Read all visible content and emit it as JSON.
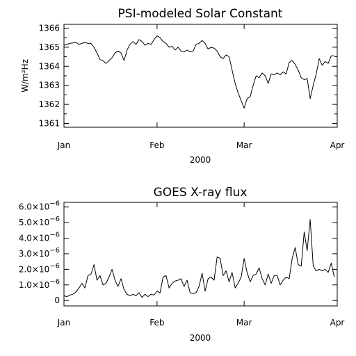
{
  "chart_data": [
    {
      "type": "line",
      "title": "PSI-modeled Solar Constant",
      "ylabel": "W/m²Hz",
      "xlabel": "2000",
      "x_tick_labels": [
        "Jan",
        "Feb",
        "Mar",
        "Apr"
      ],
      "x_tick_days": [
        0,
        31,
        60,
        91
      ],
      "y_tick_labels": [
        "1361",
        "1362",
        "1363",
        "1364",
        "1365",
        "1366"
      ],
      "y_ticks": [
        1361,
        1362,
        1363,
        1364,
        1365,
        1366
      ],
      "xlim": [
        0,
        91
      ],
      "ylim": [
        1360.8,
        1366.2
      ],
      "series": [
        {
          "x": [
            0,
            2,
            4,
            5,
            6,
            7,
            8,
            9,
            10,
            11,
            12,
            13,
            14,
            15,
            16,
            17,
            18,
            19,
            20,
            21,
            22,
            23,
            24,
            25,
            26,
            27,
            28,
            29,
            30,
            31,
            32,
            33,
            34,
            35,
            36,
            37,
            38,
            39,
            40,
            41,
            42,
            43,
            44,
            45,
            46,
            47,
            48,
            49,
            50,
            51,
            52,
            53,
            54,
            55,
            56,
            57,
            58,
            59,
            60,
            61,
            62,
            63,
            64,
            65,
            66,
            67,
            68,
            69,
            70,
            71,
            72,
            73,
            74,
            75,
            76,
            77,
            78,
            79,
            80,
            81,
            82,
            83,
            84,
            85,
            86,
            87,
            88,
            89,
            90
          ],
          "y": [
            1365.1,
            1365.2,
            1365.25,
            1365.15,
            1365.2,
            1365.25,
            1365.2,
            1365.2,
            1365.0,
            1364.7,
            1364.35,
            1364.3,
            1364.15,
            1364.3,
            1364.45,
            1364.7,
            1364.8,
            1364.7,
            1364.3,
            1364.85,
            1365.15,
            1365.3,
            1365.15,
            1365.4,
            1365.3,
            1365.1,
            1365.2,
            1365.15,
            1365.4,
            1365.6,
            1365.5,
            1365.3,
            1365.2,
            1365.0,
            1365.05,
            1364.85,
            1365.0,
            1364.8,
            1364.75,
            1364.85,
            1364.75,
            1364.8,
            1365.15,
            1365.2,
            1365.35,
            1365.2,
            1364.9,
            1365.0,
            1364.95,
            1364.8,
            1364.5,
            1364.4,
            1364.6,
            1364.5,
            1363.8,
            1363.1,
            1362.6,
            1362.2,
            1361.8,
            1362.3,
            1362.4,
            1363.0,
            1363.5,
            1363.4,
            1363.65,
            1363.5,
            1363.1,
            1363.6,
            1363.55,
            1363.65,
            1363.55,
            1363.7,
            1363.6,
            1364.2,
            1364.3,
            1364.1,
            1363.8,
            1363.4,
            1363.3,
            1363.35,
            1362.3,
            1363.0,
            1363.6,
            1364.4,
            1364.05,
            1364.25,
            1364.15,
            1364.55,
            1364.55
          ]
        }
      ]
    },
    {
      "type": "line",
      "title": "GOES X-ray flux",
      "ylabel": "",
      "xlabel": "2000",
      "x_tick_labels": [
        "Jan",
        "Feb",
        "Mar",
        "Apr"
      ],
      "x_tick_days": [
        0,
        31,
        60,
        91
      ],
      "y_tick_labels": [
        {
          "mant": "0",
          "exp": ""
        },
        {
          "mant": "1.0×10",
          "exp": "−6"
        },
        {
          "mant": "2.0×10",
          "exp": "−6"
        },
        {
          "mant": "3.0×10",
          "exp": "−6"
        },
        {
          "mant": "4.0×10",
          "exp": "−6"
        },
        {
          "mant": "5.0×10",
          "exp": "−6"
        },
        {
          "mant": "6.0×10",
          "exp": "−6"
        }
      ],
      "y_ticks": [
        0,
        1e-06,
        2e-06,
        3e-06,
        4e-06,
        5e-06,
        6e-06
      ],
      "xlim": [
        0,
        91
      ],
      "ylim": [
        -3.5e-07,
        6.3e-06
      ],
      "series": [
        {
          "x": [
            0,
            1,
            2,
            3,
            4,
            5,
            6,
            7,
            8,
            9,
            10,
            11,
            12,
            13,
            14,
            15,
            16,
            17,
            18,
            19,
            20,
            21,
            22,
            23,
            24,
            25,
            26,
            27,
            28,
            29,
            30,
            31,
            32,
            33,
            34,
            35,
            36,
            37,
            38,
            39,
            40,
            41,
            42,
            43,
            44,
            45,
            46,
            47,
            48,
            49,
            50,
            51,
            52,
            53,
            54,
            55,
            56,
            57,
            58,
            59,
            60,
            61,
            62,
            63,
            64,
            65,
            66,
            67,
            68,
            69,
            70,
            71,
            72,
            73,
            74,
            75,
            76,
            77,
            78,
            79,
            80,
            81,
            82,
            83,
            84,
            85,
            86,
            87,
            88,
            89,
            90
          ],
          "y": [
            3e-07,
            2.5e-07,
            3.5e-07,
            4e-07,
            5.5e-07,
            8e-07,
            1.1e-06,
            8e-07,
            1.6e-06,
            1.7e-06,
            2.3e-06,
            1.3e-06,
            1.6e-06,
            1e-06,
            1.1e-06,
            1.5e-06,
            2e-06,
            1.3e-06,
            9e-07,
            1.4e-06,
            7e-07,
            4e-07,
            3e-07,
            4e-07,
            3e-07,
            5e-07,
            2e-07,
            4e-07,
            2.5e-07,
            4e-07,
            3.5e-07,
            6e-07,
            5e-07,
            1.5e-06,
            1.6e-06,
            8e-07,
            1.1e-06,
            1.25e-06,
            1.3e-06,
            1.4e-06,
            9e-07,
            1.3e-06,
            5e-07,
            4.5e-07,
            5e-07,
            9e-07,
            1.75e-06,
            6e-07,
            1.4e-06,
            1.5e-06,
            1.3e-06,
            2.8e-06,
            2.7e-06,
            1.6e-06,
            1.9e-06,
            1.2e-06,
            1.8e-06,
            8e-07,
            1.1e-06,
            1.5e-06,
            2.7e-06,
            1.8e-06,
            1.2e-06,
            1.6e-06,
            1.7e-06,
            2.1e-06,
            1.4e-06,
            1e-06,
            1.7e-06,
            1.1e-06,
            1.6e-06,
            1.6e-06,
            1e-06,
            1.3e-06,
            1.5e-06,
            1.4e-06,
            2.7e-06,
            3.4e-06,
            2.3e-06,
            2.2e-06,
            4.4e-06,
            3.2e-06,
            5.2e-06,
            2.2e-06,
            1.9e-06,
            2e-06,
            1.9e-06,
            2e-06,
            1.8e-06,
            2.4e-06,
            1.5e-06
          ]
        }
      ]
    }
  ]
}
